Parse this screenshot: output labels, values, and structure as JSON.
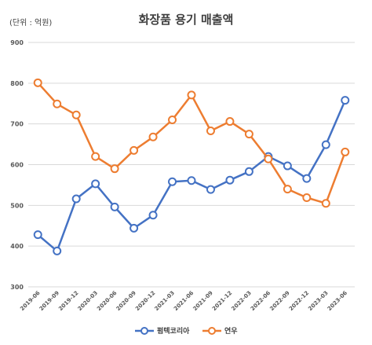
{
  "chart_data": {
    "type": "line",
    "title": "화장품 용기 매출액",
    "unit_label": "(단위 : 억원)",
    "categories": [
      "2019-06",
      "2019-09",
      "2019-12",
      "2020-03",
      "2020-06",
      "2020-09",
      "2020-12",
      "2021-03",
      "2021-06",
      "2021-09",
      "2021-12",
      "2022-03",
      "2022-06",
      "2022-09",
      "2022-12",
      "2023-03",
      "2023-06"
    ],
    "ylim": [
      300,
      900
    ],
    "yticks": [
      "300",
      "400",
      "500",
      "600",
      "700",
      "800",
      "900"
    ],
    "grid": true,
    "legend_position": "bottom",
    "series": [
      {
        "name": "펌텍코리아",
        "color": "#4472c4",
        "values": [
          428,
          388,
          516,
          553,
          496,
          444,
          476,
          558,
          561,
          539,
          562,
          583,
          620,
          597,
          566,
          649,
          758
        ]
      },
      {
        "name": "연우",
        "color": "#ed7d31",
        "values": [
          801,
          749,
          722,
          620,
          590,
          635,
          668,
          710,
          771,
          683,
          706,
          675,
          614,
          540,
          519,
          505,
          631
        ]
      }
    ]
  }
}
